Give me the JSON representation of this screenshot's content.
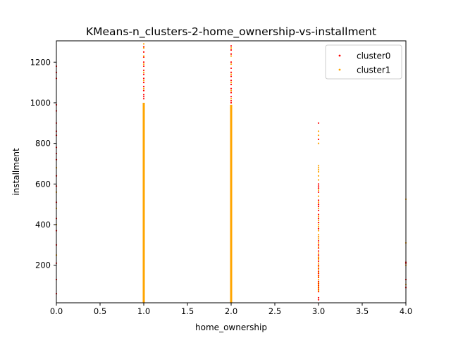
{
  "chart_data": {
    "type": "scatter",
    "title": "KMeans-n_clusters-2-home_ownership-vs-installment",
    "xlabel": "home_ownership",
    "ylabel": "installment",
    "xlim": [
      0.0,
      4.0
    ],
    "ylim": [
      15,
      1305
    ],
    "x_ticks": [
      "0.0",
      "0.5",
      "1.0",
      "1.5",
      "2.0",
      "2.5",
      "3.0",
      "3.5",
      "4.0"
    ],
    "x_tick_values": [
      0.0,
      0.5,
      1.0,
      1.5,
      2.0,
      2.5,
      3.0,
      3.5,
      4.0
    ],
    "y_ticks": [
      "200",
      "400",
      "600",
      "800",
      "1000",
      "1200"
    ],
    "y_tick_values": [
      200,
      400,
      600,
      800,
      1000,
      1200
    ],
    "grid": false,
    "legend_position": "top-right",
    "colors": {
      "cluster0": "#ff0000",
      "cluster1": "#ffa500"
    },
    "series": [
      {
        "name": "cluster0",
        "color": "#ff0000",
        "points": [
          [
            0,
            1180
          ],
          [
            0,
            1150
          ],
          [
            0,
            1120
          ],
          [
            0,
            990
          ],
          [
            0,
            960
          ],
          [
            0,
            900
          ],
          [
            0,
            860
          ],
          [
            0,
            840
          ],
          [
            0,
            780
          ],
          [
            0,
            750
          ],
          [
            0,
            720
          ],
          [
            0,
            640
          ],
          [
            0,
            590
          ],
          [
            0,
            510
          ],
          [
            0,
            430
          ],
          [
            0,
            370
          ],
          [
            0,
            300
          ],
          [
            0,
            210
          ],
          [
            0,
            130
          ],
          [
            0,
            60
          ],
          [
            1,
            1275
          ],
          [
            1,
            1250
          ],
          [
            1,
            1225
          ],
          [
            1,
            1200
          ],
          [
            1,
            1180
          ],
          [
            1,
            1160
          ],
          [
            1,
            1140
          ],
          [
            1,
            1120
          ],
          [
            1,
            1100
          ],
          [
            1,
            1080
          ],
          [
            1,
            1060
          ],
          [
            1,
            1040
          ],
          [
            1,
            1030
          ],
          [
            1,
            1020
          ],
          [
            2,
            1280
          ],
          [
            2,
            1260
          ],
          [
            2,
            1240
          ],
          [
            2,
            1200
          ],
          [
            2,
            1170
          ],
          [
            2,
            1150
          ],
          [
            2,
            1130
          ],
          [
            2,
            1110
          ],
          [
            2,
            1090
          ],
          [
            2,
            1070
          ],
          [
            2,
            1050
          ],
          [
            2,
            1030
          ],
          [
            2,
            1010
          ],
          [
            2,
            1000
          ],
          [
            3,
            900
          ],
          [
            3,
            820
          ],
          [
            3,
            600
          ],
          [
            3,
            590
          ],
          [
            3,
            580
          ],
          [
            3,
            560
          ],
          [
            3,
            520
          ],
          [
            3,
            500
          ],
          [
            3,
            490
          ],
          [
            3,
            470
          ],
          [
            3,
            450
          ],
          [
            3,
            430
          ],
          [
            3,
            410
          ],
          [
            3,
            380
          ],
          [
            3,
            340
          ],
          [
            3,
            320
          ],
          [
            3,
            300
          ],
          [
            3,
            285
          ],
          [
            3,
            270
          ],
          [
            3,
            250
          ],
          [
            3,
            235
          ],
          [
            3,
            220
          ],
          [
            3,
            200
          ],
          [
            3,
            185
          ],
          [
            3,
            170
          ],
          [
            3,
            160
          ],
          [
            3,
            150
          ],
          [
            3,
            140
          ],
          [
            3,
            120
          ],
          [
            3,
            110
          ],
          [
            3,
            100
          ],
          [
            3,
            90
          ],
          [
            3,
            80
          ],
          [
            3,
            70
          ],
          [
            3,
            40
          ],
          [
            3,
            30
          ],
          [
            4,
            215
          ],
          [
            4,
            210
          ],
          [
            4,
            130
          ],
          [
            4,
            90
          ]
        ]
      },
      {
        "name": "cluster1",
        "color": "#ffa500",
        "points": [
          [
            0,
            680
          ],
          [
            0,
            560
          ],
          [
            0,
            480
          ],
          [
            0,
            400
          ],
          [
            0,
            250
          ],
          [
            1,
            1290
          ],
          [
            1,
            1270
          ],
          [
            1,
            1230
          ],
          [
            1,
            1190
          ],
          [
            1,
            1150
          ],
          [
            1,
            1110
          ],
          [
            1,
            1070
          ],
          [
            2,
            1270
          ],
          [
            2,
            1230
          ],
          [
            2,
            1190
          ],
          [
            2,
            1140
          ],
          [
            2,
            1100
          ],
          [
            2,
            1060
          ],
          [
            2,
            1020
          ],
          [
            2,
            740
          ],
          [
            3,
            860
          ],
          [
            3,
            840
          ],
          [
            3,
            800
          ],
          [
            3,
            690
          ],
          [
            3,
            680
          ],
          [
            3,
            670
          ],
          [
            3,
            660
          ],
          [
            3,
            640
          ],
          [
            3,
            620
          ],
          [
            3,
            570
          ],
          [
            3,
            540
          ],
          [
            3,
            510
          ],
          [
            3,
            480
          ],
          [
            3,
            440
          ],
          [
            3,
            420
          ],
          [
            3,
            400
          ],
          [
            3,
            390
          ],
          [
            3,
            370
          ],
          [
            3,
            350
          ],
          [
            3,
            340
          ],
          [
            3,
            330
          ],
          [
            3,
            310
          ],
          [
            3,
            290
          ],
          [
            3,
            260
          ],
          [
            3,
            240
          ],
          [
            3,
            230
          ],
          [
            3,
            210
          ],
          [
            3,
            195
          ],
          [
            3,
            180
          ],
          [
            3,
            165
          ],
          [
            3,
            145
          ],
          [
            3,
            130
          ],
          [
            3,
            115
          ],
          [
            3,
            105
          ],
          [
            3,
            95
          ],
          [
            3,
            85
          ],
          [
            3,
            75
          ],
          [
            4,
            525
          ],
          [
            4,
            310
          ],
          [
            4,
            200
          ],
          [
            4,
            105
          ]
        ],
        "dense_columns": [
          {
            "x": 1,
            "y_from": 15,
            "y_to": 1000
          },
          {
            "x": 2,
            "y_from": 15,
            "y_to": 990
          }
        ]
      }
    ]
  }
}
